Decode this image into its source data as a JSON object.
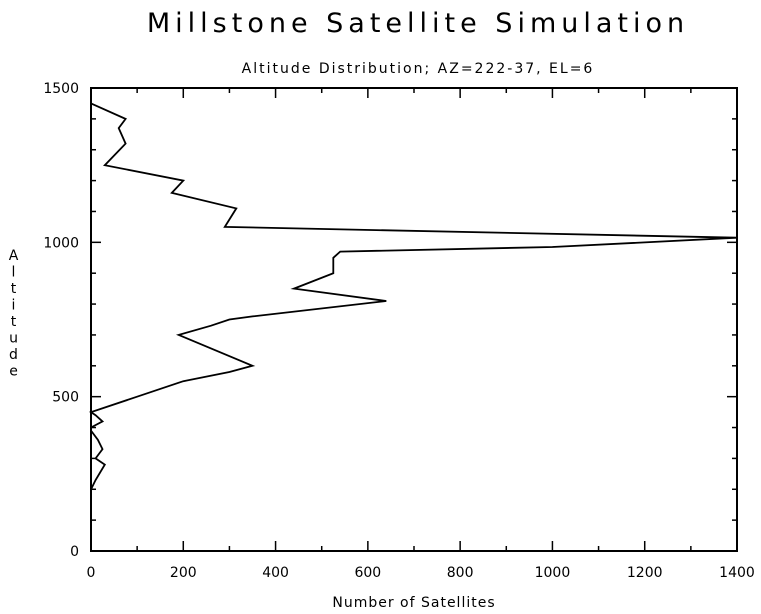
{
  "chart_data": {
    "type": "line",
    "title": "Millstone Satellite Simulation",
    "subtitle": "Altitude Distribution; AZ=222-37, EL=6",
    "xlabel": "Number of Satellites",
    "ylabel": "Altitude",
    "xlim": [
      0,
      1400
    ],
    "ylim": [
      0,
      1500
    ],
    "xticks": [
      "0",
      "200",
      "400",
      "600",
      "800",
      "1000",
      "1200",
      "1400"
    ],
    "yticks": [
      "0",
      "500",
      "1000",
      "1500"
    ],
    "series": [
      {
        "color": "#000000",
        "x": [
          0,
          10,
          30,
          10,
          25,
          15,
          0,
          0,
          25,
          10,
          0,
          100,
          200,
          300,
          350,
          190,
          260,
          300,
          350,
          640,
          440,
          525,
          525,
          540,
          1000,
          1400,
          290,
          315,
          175,
          200,
          30,
          75,
          60,
          75,
          0
        ],
        "y": [
          200,
          230,
          280,
          300,
          330,
          360,
          390,
          400,
          420,
          440,
          450,
          500,
          550,
          580,
          600,
          700,
          730,
          750,
          760,
          810,
          850,
          900,
          950,
          970,
          985,
          1015,
          1050,
          1110,
          1160,
          1200,
          1250,
          1320,
          1370,
          1400,
          1450
        ]
      }
    ]
  }
}
